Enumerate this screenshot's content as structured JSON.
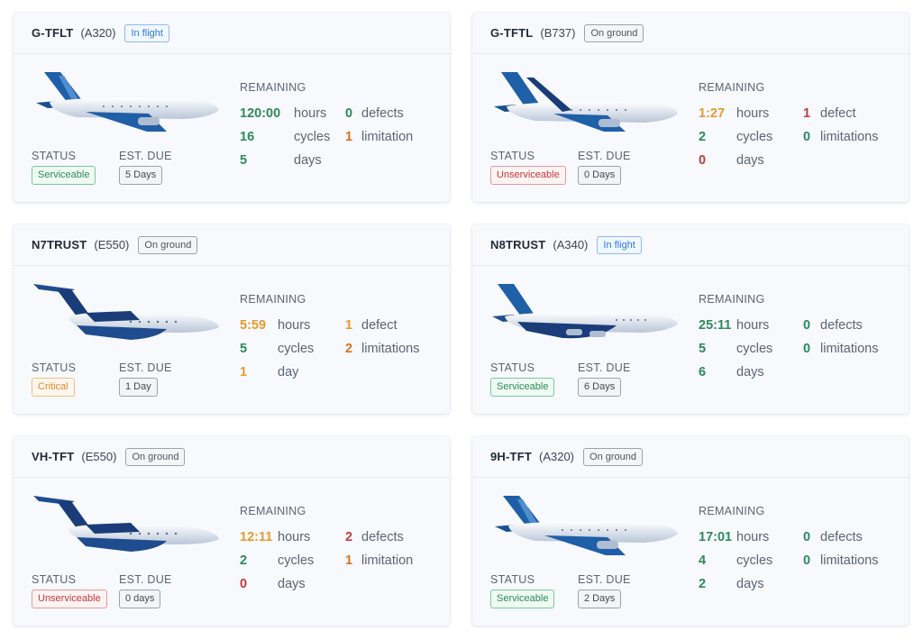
{
  "labels": {
    "remaining": "REMAINING",
    "status": "STATUS",
    "est_due": "EST. DUE"
  },
  "cards": [
    {
      "reg": "G-TFLT",
      "model": "(A320)",
      "state": "In flight",
      "hours": "120:00",
      "hours_unit": "hours",
      "cycles": "16",
      "cycles_unit": "cycles",
      "days": "5",
      "days_unit": "days",
      "defects": "0",
      "defects_unit": "defects",
      "limitations": "1",
      "limitations_unit": "limitation",
      "status": "Serviceable",
      "due": "5 Days"
    },
    {
      "reg": "G-TFTL",
      "model": "(B737)",
      "state": "On ground",
      "hours": "1:27",
      "hours_unit": "hours",
      "cycles": "2",
      "cycles_unit": "cycles",
      "days": "0",
      "days_unit": "days",
      "defects": "1",
      "defects_unit": "defect",
      "limitations": "0",
      "limitations_unit": "limitations",
      "status": "Unserviceable",
      "due": "0 Days"
    },
    {
      "reg": "N7TRUST",
      "model": "(E550)",
      "state": "On ground",
      "hours": "5:59",
      "hours_unit": "hours",
      "cycles": "5",
      "cycles_unit": "cycles",
      "days": "1",
      "days_unit": "day",
      "defects": "1",
      "defects_unit": "defect",
      "limitations": "2",
      "limitations_unit": "limitations",
      "status": "Critical",
      "due": "1 Day"
    },
    {
      "reg": "N8TRUST",
      "model": "(A340)",
      "state": "In flight",
      "hours": "25:11",
      "hours_unit": "hours",
      "cycles": "5",
      "cycles_unit": "cycles",
      "days": "6",
      "days_unit": "days",
      "defects": "0",
      "defects_unit": "defects",
      "limitations": "0",
      "limitations_unit": "limitations",
      "status": "Serviceable",
      "due": "6 Days"
    },
    {
      "reg": "VH-TFT",
      "model": "(E550)",
      "state": "On ground",
      "hours": "12:11",
      "hours_unit": "hours",
      "cycles": "2",
      "cycles_unit": "cycles",
      "days": "0",
      "days_unit": "days",
      "defects": "2",
      "defects_unit": "defects",
      "limitations": "1",
      "limitations_unit": "limitation",
      "status": "Unserviceable",
      "due": "0 days"
    },
    {
      "reg": "9H-TFT",
      "model": "(A320)",
      "state": "On ground",
      "hours": "17:01",
      "hours_unit": "hours",
      "cycles": "4",
      "cycles_unit": "cycles",
      "days": "2",
      "days_unit": "days",
      "defects": "0",
      "defects_unit": "defects",
      "limitations": "0",
      "limitations_unit": "limitations",
      "status": "Serviceable",
      "due": "2 Days"
    }
  ]
}
